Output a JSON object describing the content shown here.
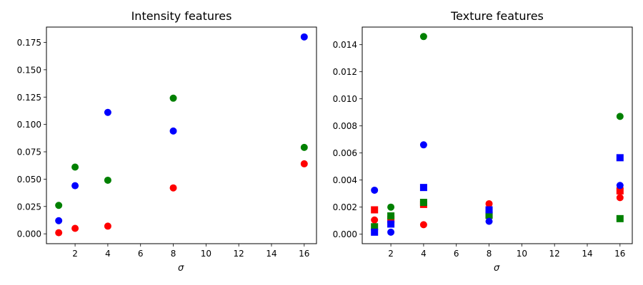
{
  "chart_data": [
    {
      "type": "scatter",
      "title": "Intensity features",
      "xlabel": "σ",
      "ylabel": "",
      "xlim": [
        0.25,
        16.75
      ],
      "ylim": [
        -0.009,
        0.189
      ],
      "xticks": [
        2,
        4,
        6,
        8,
        10,
        12,
        14,
        16
      ],
      "yticks": [
        0.0,
        0.025,
        0.05,
        0.075,
        0.1,
        0.125,
        0.15,
        0.175
      ],
      "ytick_labels": [
        "0.000",
        "0.025",
        "0.050",
        "0.075",
        "0.100",
        "0.125",
        "0.150",
        "0.175"
      ],
      "grid": false,
      "legend": null,
      "x": [
        1,
        2,
        4,
        8,
        16
      ],
      "series": [
        {
          "name": "red circles",
          "color": "#ff0000",
          "marker": "circle",
          "values": [
            0.001,
            0.005,
            0.007,
            0.042,
            0.064
          ]
        },
        {
          "name": "green circles",
          "color": "#008000",
          "marker": "circle",
          "values": [
            0.026,
            0.061,
            0.049,
            0.124,
            0.079
          ]
        },
        {
          "name": "blue circles",
          "color": "#0000ff",
          "marker": "circle",
          "values": [
            0.012,
            0.044,
            0.111,
            0.094,
            0.18
          ]
        }
      ]
    },
    {
      "type": "scatter",
      "title": "Texture features",
      "xlabel": "σ",
      "ylabel": "",
      "xlim": [
        0.25,
        16.75
      ],
      "ylim": [
        -0.0007,
        0.0153
      ],
      "xticks": [
        2,
        4,
        6,
        8,
        10,
        12,
        14,
        16
      ],
      "yticks": [
        0.0,
        0.002,
        0.004,
        0.006,
        0.008,
        0.01,
        0.012,
        0.014
      ],
      "ytick_labels": [
        "0.000",
        "0.002",
        "0.004",
        "0.006",
        "0.008",
        "0.010",
        "0.012",
        "0.014"
      ],
      "grid": false,
      "legend": null,
      "x": [
        1,
        2,
        4,
        8,
        16
      ],
      "series": [
        {
          "name": "red squares",
          "color": "#ff0000",
          "marker": "square",
          "values": [
            0.0018,
            0.0011,
            0.0022,
            0.0014,
            0.0032
          ]
        },
        {
          "name": "red circles",
          "color": "#ff0000",
          "marker": "circle",
          "values": [
            0.00105,
            0.0009,
            0.0007,
            0.00225,
            0.0027
          ]
        },
        {
          "name": "green squares",
          "color": "#008000",
          "marker": "square",
          "values": [
            0.00055,
            0.00135,
            0.00235,
            0.0014,
            0.00115
          ]
        },
        {
          "name": "green circles",
          "color": "#008000",
          "marker": "circle",
          "values": [
            null,
            0.002,
            0.0146,
            0.0016,
            0.0087
          ]
        },
        {
          "name": "blue squares",
          "color": "#0000ff",
          "marker": "square",
          "values": [
            0.00015,
            0.00075,
            0.00345,
            0.0018,
            0.00565
          ]
        },
        {
          "name": "blue circles",
          "color": "#0000ff",
          "marker": "circle",
          "values": [
            0.00325,
            0.00015,
            0.0066,
            0.00095,
            0.0036
          ]
        }
      ]
    }
  ]
}
